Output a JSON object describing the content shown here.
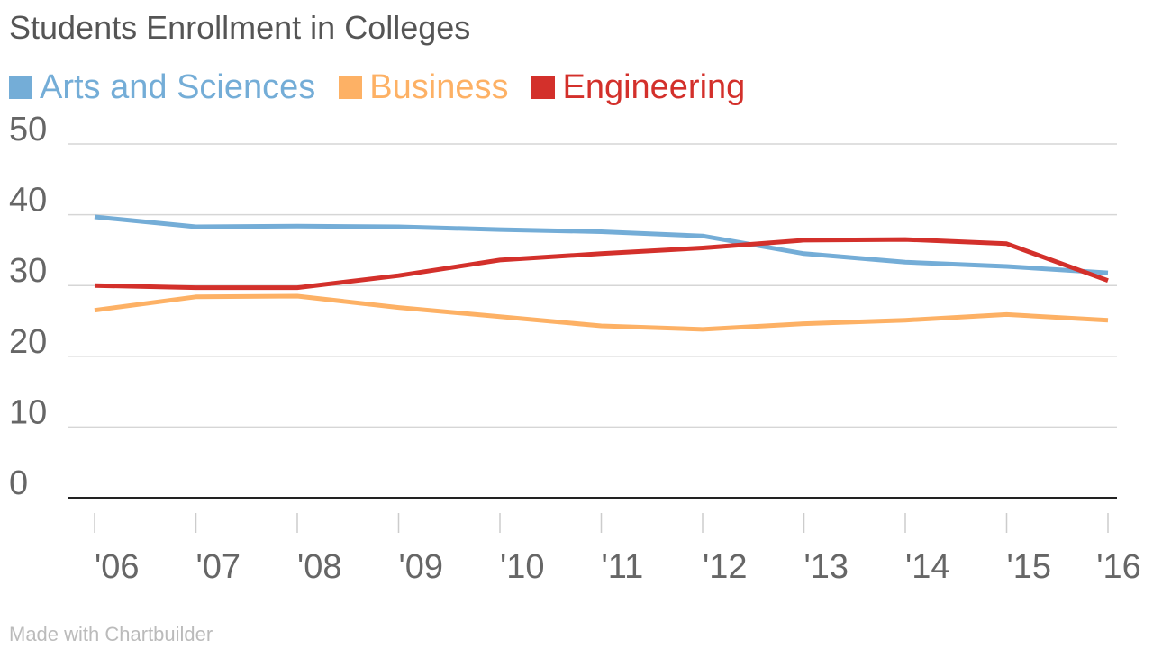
{
  "chart_data": {
    "type": "line",
    "title": "Students Enrollment in Colleges",
    "categories": [
      "'06",
      "'07",
      "'08",
      "'09",
      "'10",
      "'11",
      "'12",
      "'13",
      "'14",
      "'15",
      "'16"
    ],
    "yticks": [
      "0",
      "10",
      "20",
      "30",
      "40",
      "50"
    ],
    "ylim": [
      0,
      50
    ],
    "grid": true,
    "legend_position": "top-left",
    "series": [
      {
        "name": "Arts and Sciences",
        "color": "#74add7",
        "values": [
          39.7,
          38.3,
          38.4,
          38.3,
          37.9,
          37.6,
          37.0,
          34.5,
          33.3,
          32.7,
          31.8
        ]
      },
      {
        "name": "Business",
        "color": "#fdb165",
        "values": [
          26.5,
          28.4,
          28.5,
          26.9,
          25.6,
          24.3,
          23.8,
          24.6,
          25.1,
          25.9,
          25.1
        ]
      },
      {
        "name": "Engineering",
        "color": "#d3302b",
        "values": [
          30.0,
          29.7,
          29.7,
          31.4,
          33.6,
          34.5,
          35.3,
          36.4,
          36.5,
          35.9,
          30.7
        ]
      }
    ]
  },
  "footer": "Made with Chartbuilder"
}
